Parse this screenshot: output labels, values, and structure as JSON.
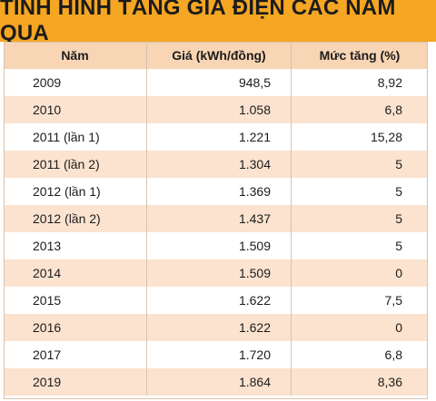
{
  "title": "TÌNH HÌNH TĂNG GIÁ ĐIỆN CÁC NĂM QUA",
  "table": {
    "headers": [
      "Năm",
      "Giá (kWh/đồng)",
      "Mức tăng (%)"
    ],
    "rows": [
      [
        "2009",
        "948,5",
        "8,92"
      ],
      [
        "2010",
        "1.058",
        "6,8"
      ],
      [
        "2011 (lần 1)",
        "1.221",
        "15,28"
      ],
      [
        "2011 (lần 2)",
        "1.304",
        "5"
      ],
      [
        "2012 (lần 1)",
        "1.369",
        "5"
      ],
      [
        "2012 (lần 2)",
        "1.437",
        "5"
      ],
      [
        "2013",
        "1.509",
        "5"
      ],
      [
        "2014",
        "1.509",
        "0"
      ],
      [
        "2015",
        "1.622",
        "7,5"
      ],
      [
        "2016",
        "1.622",
        "0"
      ],
      [
        "2017",
        "1.720",
        "6,8"
      ],
      [
        "2019",
        "1.864",
        "8,36"
      ]
    ]
  }
}
